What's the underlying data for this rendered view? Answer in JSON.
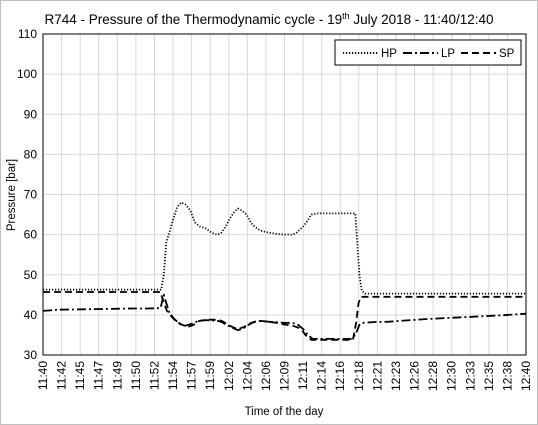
{
  "chart_data": {
    "type": "line",
    "title": {
      "prefix": "R744 - Pressure of the Thermodynamic cycle - 19",
      "sup": "th",
      "suffix": " July 2018 - 11:40/12:40"
    },
    "xlabel": "Time of the day",
    "ylabel": "Pressure [bar]",
    "ylim": [
      30,
      110
    ],
    "yticks": [
      30,
      40,
      50,
      60,
      70,
      80,
      90,
      100,
      110
    ],
    "xlim": [
      0,
      60
    ],
    "xticks": [
      {
        "t": 0,
        "label": "11:40"
      },
      {
        "t": 2.31,
        "label": "11:42"
      },
      {
        "t": 4.62,
        "label": "11:45"
      },
      {
        "t": 6.92,
        "label": "11:47"
      },
      {
        "t": 9.23,
        "label": "11:49"
      },
      {
        "t": 11.54,
        "label": "11:50"
      },
      {
        "t": 13.85,
        "label": "11:52"
      },
      {
        "t": 16.15,
        "label": "11:54"
      },
      {
        "t": 18.46,
        "label": "11:57"
      },
      {
        "t": 20.77,
        "label": "11:59"
      },
      {
        "t": 23.08,
        "label": "12:02"
      },
      {
        "t": 25.38,
        "label": "12:04"
      },
      {
        "t": 27.69,
        "label": "12:06"
      },
      {
        "t": 30.0,
        "label": "12:09"
      },
      {
        "t": 32.31,
        "label": "12:11"
      },
      {
        "t": 34.62,
        "label": "12:14"
      },
      {
        "t": 36.92,
        "label": "12:16"
      },
      {
        "t": 39.23,
        "label": "12:18"
      },
      {
        "t": 41.54,
        "label": "12:21"
      },
      {
        "t": 43.85,
        "label": "12:23"
      },
      {
        "t": 46.15,
        "label": "12:26"
      },
      {
        "t": 48.46,
        "label": "12:28"
      },
      {
        "t": 50.77,
        "label": "12:30"
      },
      {
        "t": 53.08,
        "label": "12:33"
      },
      {
        "t": 55.38,
        "label": "12:35"
      },
      {
        "t": 57.69,
        "label": "12:38"
      },
      {
        "t": 60,
        "label": "12:40"
      }
    ],
    "grid": true,
    "legend_position": "top-right",
    "series": [
      {
        "name": "HP",
        "style": "dotted",
        "color": "#000000",
        "points": [
          [
            0,
            46.3
          ],
          [
            5,
            46.3
          ],
          [
            10,
            46.3
          ],
          [
            14,
            46.3
          ],
          [
            14.7,
            46.3
          ],
          [
            15,
            50
          ],
          [
            15.3,
            58
          ],
          [
            15.7,
            60.5
          ],
          [
            16.2,
            64
          ],
          [
            16.7,
            67
          ],
          [
            17.2,
            68
          ],
          [
            17.7,
            67.5
          ],
          [
            18.3,
            66
          ],
          [
            18.9,
            63
          ],
          [
            19.5,
            62
          ],
          [
            20.3,
            61.5
          ],
          [
            20.9,
            60.5
          ],
          [
            21.6,
            60
          ],
          [
            22.1,
            60.3
          ],
          [
            22.7,
            62
          ],
          [
            23.2,
            64
          ],
          [
            23.7,
            65.5
          ],
          [
            24.2,
            66.5
          ],
          [
            24.7,
            66
          ],
          [
            25.3,
            65
          ],
          [
            25.8,
            63
          ],
          [
            26.3,
            62
          ],
          [
            27.0,
            61
          ],
          [
            28,
            60.5
          ],
          [
            29,
            60.2
          ],
          [
            30,
            60
          ],
          [
            31,
            60
          ],
          [
            31.5,
            60.5
          ],
          [
            32.3,
            62
          ],
          [
            32.9,
            63.5
          ],
          [
            33.3,
            65
          ],
          [
            34,
            65.3
          ],
          [
            36,
            65.3
          ],
          [
            38,
            65.3
          ],
          [
            38.8,
            65.3
          ],
          [
            39.3,
            50
          ],
          [
            39.6,
            46
          ],
          [
            40,
            45.3
          ],
          [
            45,
            45.3
          ],
          [
            50,
            45.3
          ],
          [
            55,
            45.3
          ],
          [
            60,
            45.3
          ]
        ]
      },
      {
        "name": "LP",
        "style": "dashdot",
        "color": "#000000",
        "points": [
          [
            0,
            41
          ],
          [
            2,
            41.3
          ],
          [
            5,
            41.4
          ],
          [
            8,
            41.5
          ],
          [
            11,
            41.6
          ],
          [
            13,
            41.6
          ],
          [
            14.6,
            41.7
          ],
          [
            15,
            45
          ],
          [
            15.3,
            43
          ],
          [
            15.7,
            40.5
          ],
          [
            16.3,
            39
          ],
          [
            17,
            37.7
          ],
          [
            17.7,
            37.3
          ],
          [
            18.5,
            37.8
          ],
          [
            19.3,
            38.5
          ],
          [
            20.3,
            38.7
          ],
          [
            21,
            38.6
          ],
          [
            21.7,
            38.5
          ],
          [
            22.2,
            38.2
          ],
          [
            22.8,
            37.5
          ],
          [
            23.5,
            36.8
          ],
          [
            24.2,
            36.2
          ],
          [
            24.8,
            36.5
          ],
          [
            25.5,
            37.5
          ],
          [
            26.2,
            38.2
          ],
          [
            27,
            38.5
          ],
          [
            28,
            38.3
          ],
          [
            29,
            38.2
          ],
          [
            30,
            38
          ],
          [
            31,
            38
          ],
          [
            31.7,
            37.5
          ],
          [
            32.3,
            36.5
          ],
          [
            32.9,
            35
          ],
          [
            33.5,
            34
          ],
          [
            35,
            34
          ],
          [
            37,
            34
          ],
          [
            38.3,
            34
          ],
          [
            38.8,
            35
          ],
          [
            39.3,
            37.5
          ],
          [
            39.6,
            38
          ],
          [
            41,
            38.2
          ],
          [
            43,
            38.3
          ],
          [
            45,
            38.6
          ],
          [
            48,
            39
          ],
          [
            51,
            39.3
          ],
          [
            54,
            39.6
          ],
          [
            57,
            39.9
          ],
          [
            60,
            40.3
          ]
        ]
      },
      {
        "name": "SP",
        "style": "dashed",
        "color": "#000000",
        "points": [
          [
            0,
            45.7
          ],
          [
            5,
            45.7
          ],
          [
            10,
            45.7
          ],
          [
            14,
            45.7
          ],
          [
            14.6,
            45.7
          ],
          [
            15,
            43
          ],
          [
            15.4,
            41
          ],
          [
            16,
            39.5
          ],
          [
            16.6,
            38.3
          ],
          [
            17.3,
            37.5
          ],
          [
            18,
            37
          ],
          [
            18.7,
            37.5
          ],
          [
            19.4,
            38.5
          ],
          [
            20.3,
            38.8
          ],
          [
            21.2,
            38.8
          ],
          [
            21.9,
            38.7
          ],
          [
            22.4,
            38.3
          ],
          [
            23.0,
            37.5
          ],
          [
            23.7,
            36.8
          ],
          [
            24.3,
            36.5
          ],
          [
            25,
            37
          ],
          [
            25.6,
            37.8
          ],
          [
            26.3,
            38.3
          ],
          [
            27,
            38.5
          ],
          [
            28,
            38.3
          ],
          [
            29,
            38
          ],
          [
            30,
            37.6
          ],
          [
            31,
            37.3
          ],
          [
            31.7,
            36.8
          ],
          [
            32.3,
            35.8
          ],
          [
            32.8,
            34.5
          ],
          [
            33.3,
            33.8
          ],
          [
            35,
            33.8
          ],
          [
            37,
            33.8
          ],
          [
            38.5,
            33.8
          ],
          [
            38.9,
            38
          ],
          [
            39.2,
            43
          ],
          [
            39.5,
            44.5
          ],
          [
            40,
            44.5
          ],
          [
            45,
            44.5
          ],
          [
            50,
            44.5
          ],
          [
            55,
            44.5
          ],
          [
            60,
            44.5
          ]
        ]
      }
    ]
  }
}
